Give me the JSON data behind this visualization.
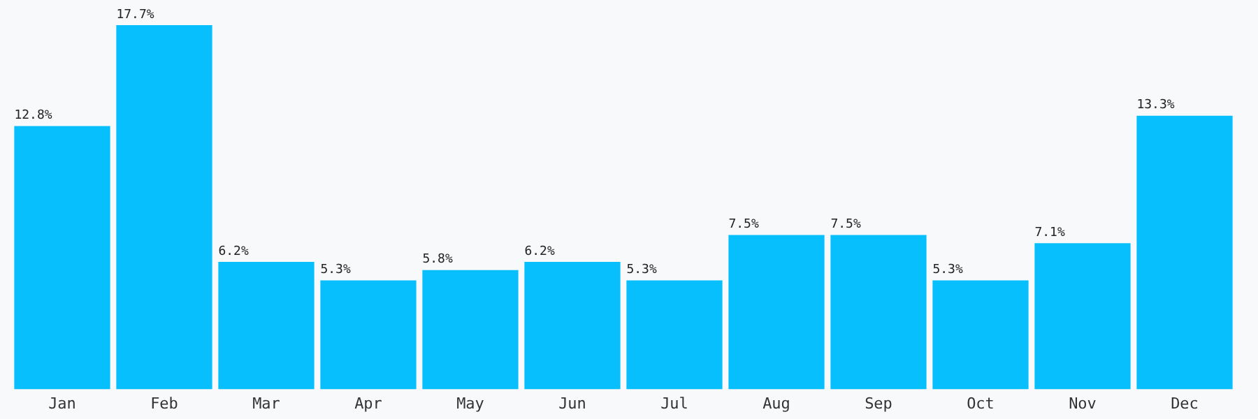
{
  "chart_data": {
    "type": "bar",
    "categories": [
      "Jan",
      "Feb",
      "Mar",
      "Apr",
      "May",
      "Jun",
      "Jul",
      "Aug",
      "Sep",
      "Oct",
      "Nov",
      "Dec"
    ],
    "values": [
      12.8,
      17.7,
      6.2,
      5.3,
      5.8,
      6.2,
      5.3,
      7.5,
      7.5,
      5.3,
      7.1,
      13.3
    ],
    "value_labels": [
      "12.8%",
      "17.7%",
      "6.2%",
      "5.3%",
      "5.8%",
      "6.2%",
      "5.3%",
      "7.5%",
      "7.5%",
      "5.3%",
      "7.1%",
      "13.3%"
    ],
    "color": "#06bffc",
    "grid": false,
    "legend": false
  }
}
